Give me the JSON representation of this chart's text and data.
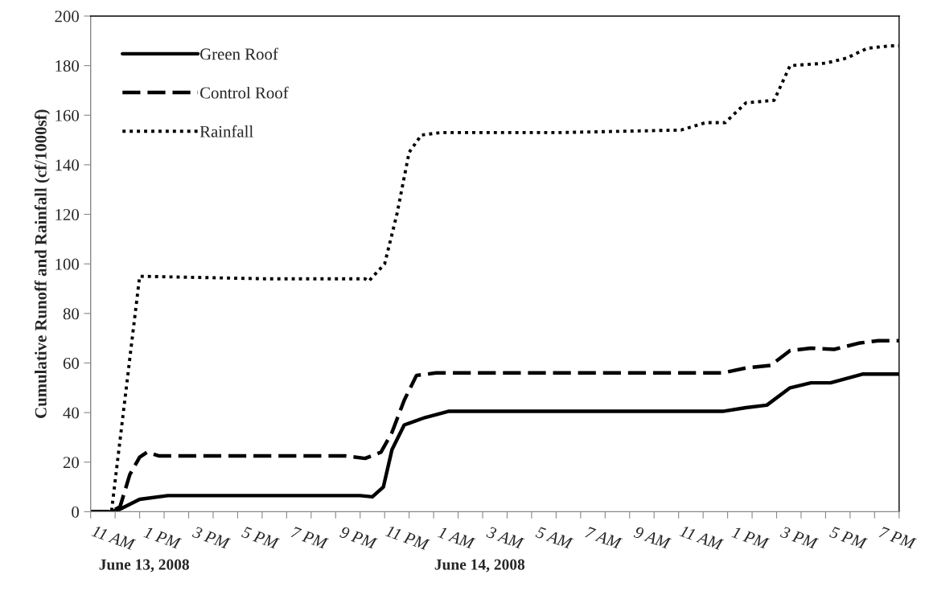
{
  "chart_data": {
    "type": "line",
    "ylabel": "Cumulative Runoff and Rainfall (cf/1000sf)",
    "annotations": [
      "June 13, 2008",
      "June 14, 2008"
    ],
    "xlim": [
      "2008-06-13T10:00",
      "2008-06-14T19:00"
    ],
    "xticks": [
      {
        "value": "2008-06-13T10:00",
        "label": null
      },
      {
        "value": "2008-06-13T11:00",
        "label": "11 AM"
      },
      {
        "value": "2008-06-13T12:00",
        "label": null
      },
      {
        "value": "2008-06-13T13:00",
        "label": "1 PM"
      },
      {
        "value": "2008-06-13T14:00",
        "label": null
      },
      {
        "value": "2008-06-13T15:00",
        "label": "3 PM"
      },
      {
        "value": "2008-06-13T16:00",
        "label": null
      },
      {
        "value": "2008-06-13T17:00",
        "label": "5 PM"
      },
      {
        "value": "2008-06-13T18:00",
        "label": null
      },
      {
        "value": "2008-06-13T19:00",
        "label": "7 PM"
      },
      {
        "value": "2008-06-13T20:00",
        "label": null
      },
      {
        "value": "2008-06-13T21:00",
        "label": "9 PM"
      },
      {
        "value": "2008-06-13T22:00",
        "label": null
      },
      {
        "value": "2008-06-13T23:00",
        "label": "11 PM"
      },
      {
        "value": "2008-06-14T00:00",
        "label": null
      },
      {
        "value": "2008-06-14T01:00",
        "label": "1 AM"
      },
      {
        "value": "2008-06-14T02:00",
        "label": null
      },
      {
        "value": "2008-06-14T03:00",
        "label": "3 AM"
      },
      {
        "value": "2008-06-14T04:00",
        "label": null
      },
      {
        "value": "2008-06-14T05:00",
        "label": "5 AM"
      },
      {
        "value": "2008-06-14T06:00",
        "label": null
      },
      {
        "value": "2008-06-14T07:00",
        "label": "7 AM"
      },
      {
        "value": "2008-06-14T08:00",
        "label": null
      },
      {
        "value": "2008-06-14T09:00",
        "label": "9 AM"
      },
      {
        "value": "2008-06-14T10:00",
        "label": null
      },
      {
        "value": "2008-06-14T11:00",
        "label": "11 AM"
      },
      {
        "value": "2008-06-14T12:00",
        "label": null
      },
      {
        "value": "2008-06-14T13:00",
        "label": "1 PM"
      },
      {
        "value": "2008-06-14T14:00",
        "label": null
      },
      {
        "value": "2008-06-14T15:00",
        "label": "3 PM"
      },
      {
        "value": "2008-06-14T16:00",
        "label": null
      },
      {
        "value": "2008-06-14T17:00",
        "label": "5 PM"
      },
      {
        "value": "2008-06-14T18:00",
        "label": null
      },
      {
        "value": "2008-06-14T19:00",
        "label": "7 PM"
      }
    ],
    "ylim": [
      0,
      200
    ],
    "yticks": [
      0,
      20,
      40,
      60,
      80,
      100,
      120,
      140,
      160,
      180,
      200
    ],
    "grid": false,
    "legend": "top left",
    "marker": "none",
    "series": [
      {
        "name": "Green Roof",
        "color": "#000000",
        "line_style": "solid",
        "x": [
          "2008-06-13T10:00",
          "2008-06-13T10:51",
          "2008-06-13T11:12",
          "2008-06-13T12:00",
          "2008-06-13T13:09",
          "2008-06-13T21:00",
          "2008-06-13T21:30",
          "2008-06-13T21:57",
          "2008-06-13T22:18",
          "2008-06-13T22:48",
          "2008-06-13T23:39",
          "2008-06-14T00:36",
          "2008-06-14T11:48",
          "2008-06-14T12:45",
          "2008-06-14T13:36",
          "2008-06-14T14:33",
          "2008-06-14T15:24",
          "2008-06-14T16:12",
          "2008-06-14T17:30",
          "2008-06-14T19:00"
        ],
        "values": [
          0,
          0,
          1,
          5,
          6.5,
          6.5,
          6,
          10,
          25,
          35,
          38,
          40.5,
          40.5,
          42,
          43,
          50,
          52,
          52,
          55.5,
          55.5
        ]
      },
      {
        "name": "Control Roof",
        "color": "#000000",
        "line_style": "dashed",
        "x": [
          "2008-06-13T10:00",
          "2008-06-13T10:51",
          "2008-06-13T11:12",
          "2008-06-13T11:36",
          "2008-06-13T12:00",
          "2008-06-13T12:18",
          "2008-06-13T12:48",
          "2008-06-13T20:24",
          "2008-06-13T21:12",
          "2008-06-13T21:51",
          "2008-06-13T22:18",
          "2008-06-13T22:48",
          "2008-06-13T23:18",
          "2008-06-14T00:06",
          "2008-06-14T11:48",
          "2008-06-14T12:45",
          "2008-06-14T13:45",
          "2008-06-14T14:33",
          "2008-06-14T15:24",
          "2008-06-14T16:21",
          "2008-06-14T17:21",
          "2008-06-14T18:09",
          "2008-06-14T19:00"
        ],
        "values": [
          0,
          0,
          2,
          15,
          22,
          24,
          22.5,
          22.5,
          21.5,
          24,
          32,
          45,
          55,
          56,
          56,
          58,
          59,
          65,
          66,
          65.5,
          68,
          69,
          69
        ]
      },
      {
        "name": "Rainfall",
        "color": "#000000",
        "line_style": "dotted",
        "x": [
          "2008-06-13T10:00",
          "2008-06-13T10:51",
          "2008-06-13T12:00",
          "2008-06-13T17:06",
          "2008-06-13T21:12",
          "2008-06-13T21:21",
          "2008-06-13T22:00",
          "2008-06-13T22:30",
          "2008-06-13T23:00",
          "2008-06-13T23:30",
          "2008-06-14T00:18",
          "2008-06-14T05:12",
          "2008-06-14T10:06",
          "2008-06-14T11:06",
          "2008-06-14T11:54",
          "2008-06-14T12:45",
          "2008-06-14T13:54",
          "2008-06-14T14:33",
          "2008-06-14T16:00",
          "2008-06-14T16:51",
          "2008-06-14T17:42",
          "2008-06-14T18:39",
          "2008-06-14T19:00"
        ],
        "values": [
          0,
          0,
          95,
          94,
          94,
          93,
          100,
          120,
          145,
          152,
          153,
          153,
          154,
          157,
          157,
          165,
          166,
          180,
          181,
          183,
          187,
          188,
          188
        ]
      }
    ]
  }
}
